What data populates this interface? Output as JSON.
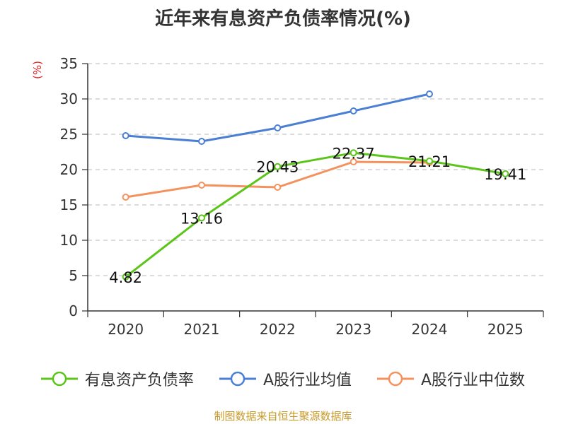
{
  "chart_data": {
    "type": "line",
    "title": "近年来有息资产负债率情况(%)",
    "ylabel": "(%)",
    "xlabel": "",
    "categories": [
      "2020",
      "2021",
      "2022",
      "2023",
      "2024",
      "2025"
    ],
    "ylim": [
      0,
      35
    ],
    "yticks": [
      0,
      5,
      10,
      15,
      20,
      25,
      30,
      35
    ],
    "grid": true,
    "legend_position": "bottom",
    "series": [
      {
        "name": "有息资产负债率",
        "color": "#5cc51a",
        "values": [
          4.82,
          13.16,
          20.43,
          22.37,
          21.21,
          19.41
        ],
        "labels": [
          "4.82",
          "13.16",
          "20.43",
          "22.37",
          "21.21",
          "19.41"
        ]
      },
      {
        "name": "A股行业均值",
        "color": "#4a7fd4",
        "values": [
          24.8,
          24.0,
          25.9,
          28.3,
          30.7,
          null
        ]
      },
      {
        "name": "A股行业中位数",
        "color": "#f4925e",
        "values": [
          16.1,
          17.8,
          17.5,
          21.1,
          21.0,
          null
        ]
      }
    ]
  },
  "source_note": "制图数据来自恒生聚源数据库"
}
